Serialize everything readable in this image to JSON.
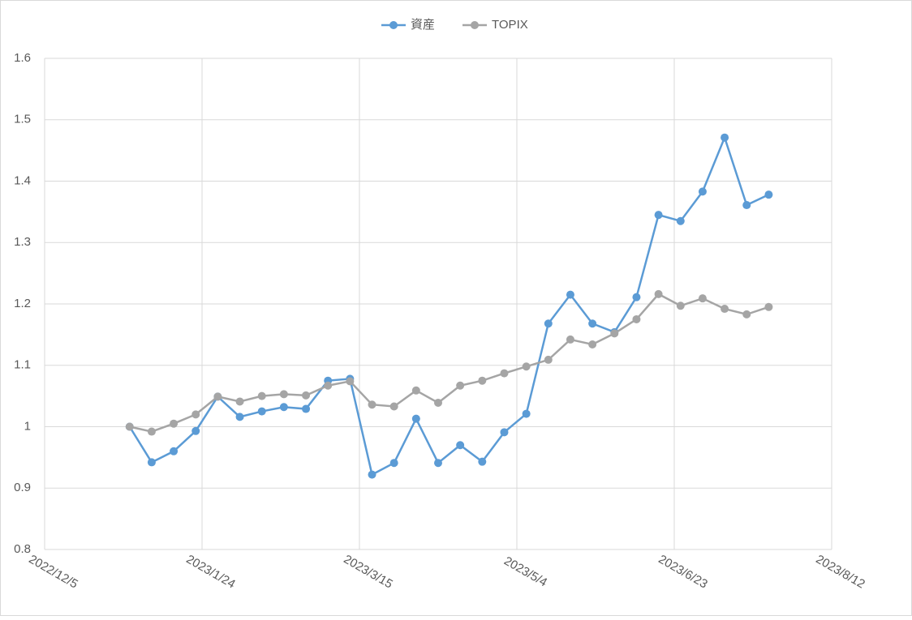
{
  "chart_data": {
    "type": "line",
    "x": [
      "2023/1/1",
      "2023/1/8",
      "2023/1/15",
      "2023/1/22",
      "2023/1/29",
      "2023/2/5",
      "2023/2/12",
      "2023/2/19",
      "2023/2/26",
      "2023/3/5",
      "2023/3/12",
      "2023/3/19",
      "2023/3/26",
      "2023/4/2",
      "2023/4/9",
      "2023/4/16",
      "2023/4/23",
      "2023/4/30",
      "2023/5/7",
      "2023/5/14",
      "2023/5/21",
      "2023/5/28",
      "2023/6/4",
      "2023/6/11",
      "2023/6/18",
      "2023/6/25",
      "2023/7/2",
      "2023/7/9",
      "2023/7/16",
      "2023/7/23"
    ],
    "series": [
      {
        "name": "資産",
        "color": "#5b9bd5",
        "values": [
          1.0,
          0.942,
          0.96,
          0.993,
          1.049,
          1.016,
          1.025,
          1.032,
          1.029,
          1.075,
          1.078,
          0.922,
          0.941,
          1.013,
          0.941,
          0.97,
          0.943,
          0.991,
          1.021,
          1.168,
          1.215,
          1.168,
          1.154,
          1.211,
          1.345,
          1.335,
          1.383,
          1.471,
          1.361,
          1.378
        ]
      },
      {
        "name": "TOPIX",
        "color": "#a5a5a5",
        "values": [
          1.0,
          0.992,
          1.005,
          1.02,
          1.049,
          1.041,
          1.05,
          1.053,
          1.051,
          1.067,
          1.074,
          1.036,
          1.033,
          1.059,
          1.039,
          1.067,
          1.075,
          1.087,
          1.098,
          1.109,
          1.142,
          1.134,
          1.152,
          1.175,
          1.216,
          1.197,
          1.209,
          1.192,
          1.183,
          1.195
        ]
      }
    ],
    "xlim": [
      "2022/12/5",
      "2023/8/12"
    ],
    "xticks": [
      "2022/12/5",
      "2023/1/24",
      "2023/3/15",
      "2023/5/4",
      "2023/6/23",
      "2023/8/12"
    ],
    "ylim": [
      0.8,
      1.6
    ],
    "yticks": [
      0.8,
      0.9,
      1,
      1.1,
      1.2,
      1.3,
      1.4,
      1.5,
      1.6
    ],
    "grid": true,
    "legend": "top"
  }
}
